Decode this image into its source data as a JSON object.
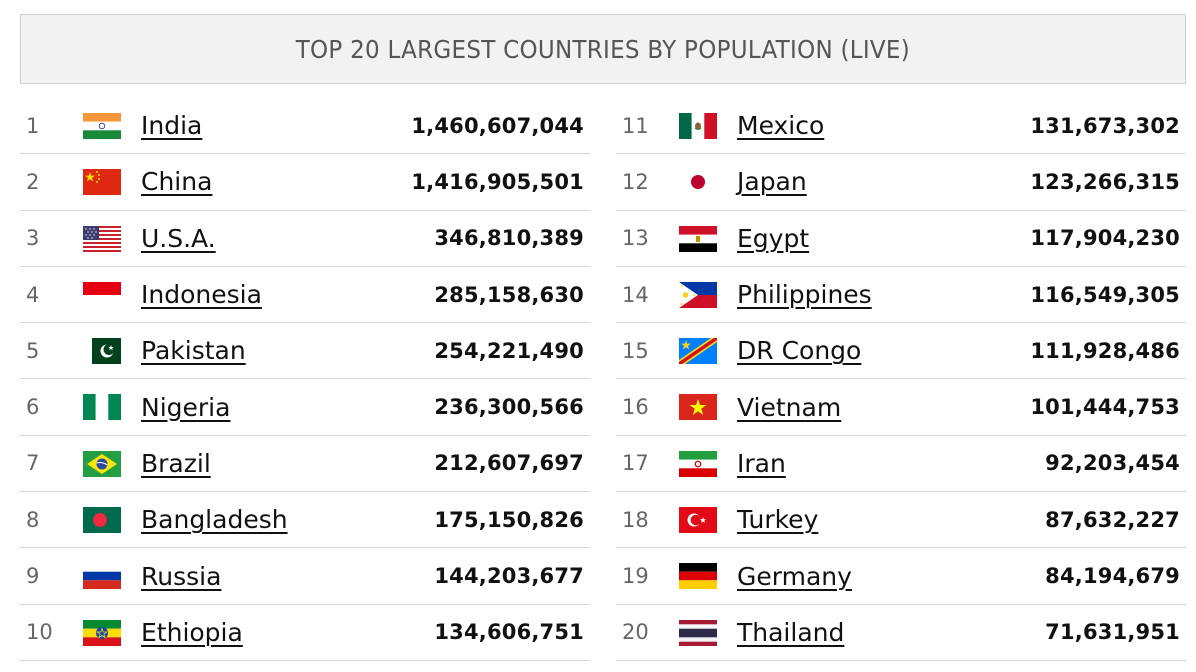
{
  "title": "TOP 20 LARGEST COUNTRIES BY POPULATION (LIVE)",
  "columns": [
    [
      {
        "rank": "1",
        "name": "India",
        "population": "1,460,607,044",
        "flag": "india-flag"
      },
      {
        "rank": "2",
        "name": "China",
        "population": "1,416,905,501",
        "flag": "china-flag"
      },
      {
        "rank": "3",
        "name": "U.S.A.",
        "population": "346,810,389",
        "flag": "usa-flag"
      },
      {
        "rank": "4",
        "name": "Indonesia",
        "population": "285,158,630",
        "flag": "indonesia-flag"
      },
      {
        "rank": "5",
        "name": "Pakistan",
        "population": "254,221,490",
        "flag": "pakistan-flag"
      },
      {
        "rank": "6",
        "name": "Nigeria",
        "population": "236,300,566",
        "flag": "nigeria-flag"
      },
      {
        "rank": "7",
        "name": "Brazil",
        "population": "212,607,697",
        "flag": "brazil-flag"
      },
      {
        "rank": "8",
        "name": "Bangladesh",
        "population": "175,150,826",
        "flag": "bangladesh-flag"
      },
      {
        "rank": "9",
        "name": "Russia",
        "population": "144,203,677",
        "flag": "russia-flag"
      },
      {
        "rank": "10",
        "name": "Ethiopia",
        "population": "134,606,751",
        "flag": "ethiopia-flag"
      }
    ],
    [
      {
        "rank": "11",
        "name": "Mexico",
        "population": "131,673,302",
        "flag": "mexico-flag"
      },
      {
        "rank": "12",
        "name": "Japan",
        "population": "123,266,315",
        "flag": "japan-flag"
      },
      {
        "rank": "13",
        "name": "Egypt",
        "population": "117,904,230",
        "flag": "egypt-flag"
      },
      {
        "rank": "14",
        "name": "Philippines",
        "population": "116,549,305",
        "flag": "philippines-flag"
      },
      {
        "rank": "15",
        "name": "DR Congo",
        "population": "111,928,486",
        "flag": "dr-congo-flag"
      },
      {
        "rank": "16",
        "name": "Vietnam",
        "population": "101,444,753",
        "flag": "vietnam-flag"
      },
      {
        "rank": "17",
        "name": "Iran",
        "population": "92,203,454",
        "flag": "iran-flag"
      },
      {
        "rank": "18",
        "name": "Turkey",
        "population": "87,632,227",
        "flag": "turkey-flag"
      },
      {
        "rank": "19",
        "name": "Germany",
        "population": "84,194,679",
        "flag": "germany-flag"
      },
      {
        "rank": "20",
        "name": "Thailand",
        "population": "71,631,951",
        "flag": "thailand-flag"
      }
    ]
  ]
}
